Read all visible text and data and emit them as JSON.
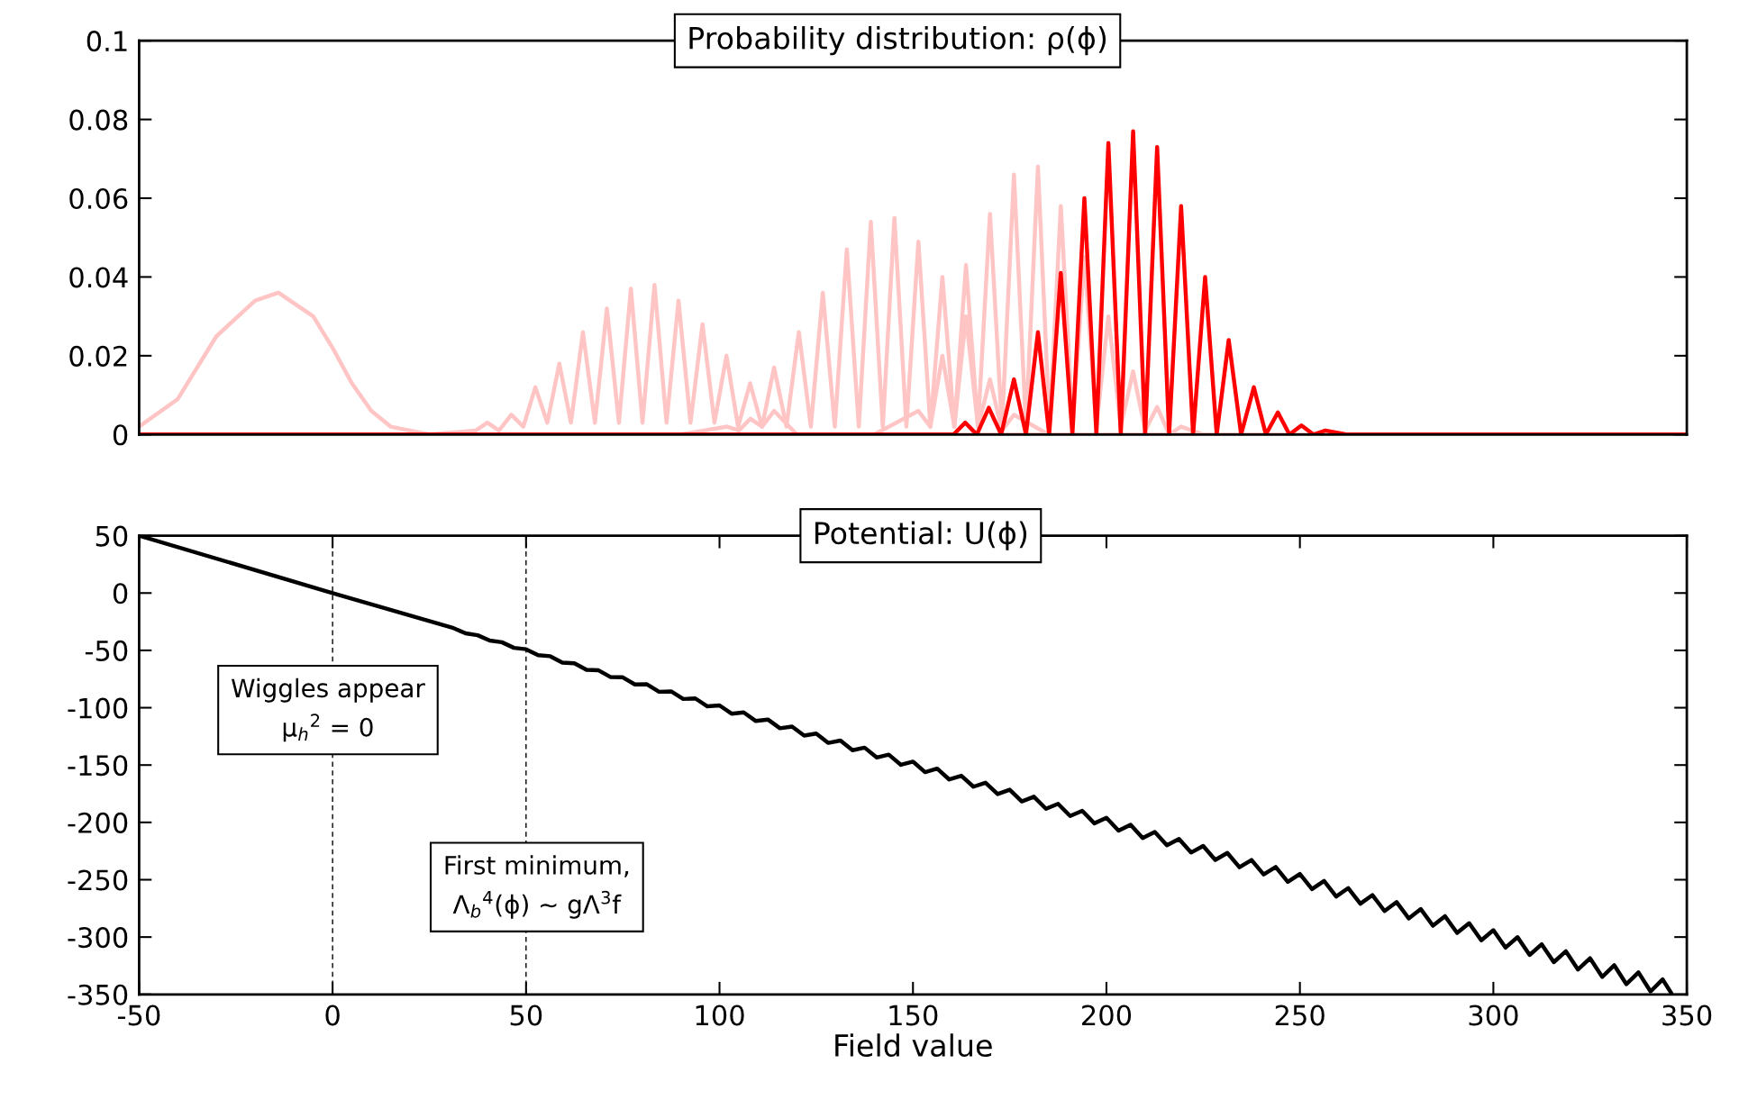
{
  "chart_data": [
    {
      "type": "line",
      "title": "Probability distribution: ρ(ϕ)",
      "xlim": [
        -50,
        350
      ],
      "ylim": [
        0,
        0.1
      ],
      "yticks": [
        0,
        0.02,
        0.04,
        0.06,
        0.08,
        0.1
      ],
      "tick_labels": "y",
      "grid": false,
      "legend": false,
      "marker": "none",
      "line_style": "solid",
      "series": [
        {
          "color": "#ffc4c4",
          "x": [
            -50,
            -40,
            -30,
            -20,
            -14,
            -5,
            0,
            5,
            10,
            15,
            25,
            350
          ],
          "values": [
            0.002,
            0.009,
            0.025,
            0.034,
            0.036,
            0.03,
            0.022,
            0.013,
            0.006,
            0.002,
            0,
            0
          ]
        },
        {
          "color": "#ffc4c4",
          "x": [
            25,
            37,
            40,
            43,
            46.2,
            49.3,
            52.4,
            55.5,
            58.6,
            61.6,
            64.7,
            67.8,
            70.9,
            74,
            77.1,
            80.1,
            83.2,
            86.3,
            89.4,
            92.5,
            95.6,
            98.7,
            101.8,
            104.8,
            107.9,
            111,
            114.1,
            120,
            350
          ],
          "values": [
            0,
            0.001,
            0.003,
            0.001,
            0.005,
            0.002,
            0.012,
            0.003,
            0.018,
            0.003,
            0.026,
            0.003,
            0.032,
            0.003,
            0.037,
            0.003,
            0.038,
            0.003,
            0.034,
            0.003,
            0.028,
            0.003,
            0.02,
            0.002,
            0.013,
            0.002,
            0.006,
            0,
            0
          ]
        },
        {
          "color": "#ffc4c4",
          "x": [
            -50,
            90,
            102,
            105,
            108,
            111,
            114.1,
            117.3,
            120.5,
            123.6,
            126.7,
            129.8,
            132.9,
            136,
            139.1,
            142.2,
            145.2,
            148.3,
            151.4,
            154.5,
            157.6,
            160.7,
            163.7,
            166.8,
            169.9,
            173,
            176.1,
            185,
            350
          ],
          "values": [
            0,
            0,
            0.002,
            0.001,
            0.004,
            0.002,
            0.017,
            0.002,
            0.026,
            0.002,
            0.036,
            0.002,
            0.047,
            0.002,
            0.054,
            0.002,
            0.055,
            0.002,
            0.049,
            0.002,
            0.04,
            0.002,
            0.03,
            0.002,
            0.014,
            0.001,
            0.005,
            0,
            0
          ]
        },
        {
          "color": "#ffc4c4",
          "x": [
            -50,
            140,
            151.4,
            154.5,
            157.6,
            160.7,
            163.7,
            166.8,
            169.9,
            173,
            176.1,
            179.2,
            182.3,
            185.3,
            188.2,
            191.3,
            194.3,
            197.4,
            200.5,
            203.7,
            206.9,
            210,
            213.1,
            216.2,
            219.3,
            225,
            350
          ],
          "values": [
            0,
            0,
            0.006,
            0.002,
            0.02,
            0.002,
            0.043,
            0.002,
            0.056,
            0.002,
            0.066,
            0.002,
            0.068,
            0.002,
            0.058,
            0.002,
            0.045,
            0.002,
            0.03,
            0.002,
            0.016,
            0.001,
            0.007,
            0,
            0.002,
            0,
            0
          ]
        },
        {
          "color": "#ff0000",
          "x": [
            -50,
            155,
            160.5,
            163.5,
            166.5,
            169.6,
            172.8,
            176.1,
            179.2,
            182.3,
            185.2,
            188.2,
            191.2,
            194.3,
            197.4,
            200.5,
            203.7,
            206.9,
            210,
            213.1,
            216.2,
            219.3,
            222.4,
            225.5,
            228.5,
            231.6,
            234.8,
            238.1,
            241.2,
            244.3,
            247.3,
            250.4,
            253.5,
            256.6,
            262,
            350
          ],
          "values": [
            0,
            0,
            0,
            0.003,
            0,
            0.0068,
            0,
            0.014,
            0,
            0.026,
            0,
            0.041,
            0,
            0.06,
            0,
            0.074,
            0,
            0.077,
            0,
            0.073,
            0,
            0.058,
            0,
            0.04,
            0,
            0.024,
            0,
            0.012,
            0,
            0.0056,
            0,
            0.0023,
            0,
            0.001,
            0,
            0
          ]
        }
      ]
    },
    {
      "type": "line",
      "title": "Potential: U(ϕ)",
      "xlabel": "Field value",
      "xlim": [
        -50,
        350
      ],
      "ylim": [
        -350,
        50
      ],
      "xticks": [
        -50,
        0,
        50,
        100,
        150,
        200,
        250,
        300,
        350
      ],
      "yticks": [
        -350,
        -300,
        -250,
        -200,
        -150,
        -100,
        -50,
        0,
        50
      ],
      "grid": false,
      "legend": false,
      "marker": "none",
      "line_style": "solid",
      "ref_lines": [
        {
          "axis": "x",
          "value": 0,
          "color": "#000000",
          "line_style": "dashed"
        },
        {
          "axis": "x",
          "value": 50,
          "color": "#000000",
          "line_style": "dashed"
        }
      ],
      "annotations": [
        "Wiggles appear\nμ$_{h}$$^{2}$ = 0",
        "First minimum,\nΛ$_{b}$$^{4}$(ϕ) ~ gΛ$^{3}$f"
      ],
      "series": [
        {
          "color": "#000000",
          "x": [
            -50,
            0,
            31.25,
            34.375,
            37.5,
            40.625,
            43.75,
            46.875,
            50,
            53.125,
            56.25,
            59.375,
            62.5,
            65.625,
            68.75,
            71.875,
            75,
            78.125,
            81.25,
            84.375,
            87.5,
            90.625,
            93.75,
            96.875,
            100,
            103.125,
            106.25,
            109.375,
            112.5,
            115.625,
            118.75,
            121.875,
            125,
            128.125,
            131.25,
            134.375,
            137.5,
            140.625,
            143.75,
            146.875,
            150,
            153.125,
            156.25,
            159.375,
            162.5,
            165.625,
            168.75,
            171.875,
            175,
            178.125,
            181.25,
            184.375,
            187.5,
            190.625,
            193.75,
            196.875,
            200,
            203.125,
            206.25,
            209.375,
            212.5,
            215.625,
            218.75,
            221.875,
            225,
            228.125,
            231.25,
            234.375,
            237.5,
            240.625,
            243.75,
            246.875,
            250,
            253.125,
            256.25,
            259.375,
            262.5,
            265.625,
            268.75,
            271.875,
            275,
            278.125,
            281.25,
            284.375,
            287.5,
            290.625,
            293.75,
            296.875,
            300,
            303.125,
            306.25,
            309.375,
            312.5,
            315.625,
            318.75,
            321.875,
            325,
            328.125,
            331.25,
            334.375,
            337.5,
            340.625,
            343.75,
            346
          ],
          "values": [
            50,
            0,
            -30.6,
            -35.1,
            -36.8,
            -41.4,
            -42.9,
            -47.8,
            -49.0,
            -54.2,
            -55.1,
            -60.6,
            -61.3,
            -66.9,
            -67.4,
            -73.3,
            -73.5,
            -79.7,
            -79.6,
            -86.1,
            -85.8,
            -92.4,
            -91.9,
            -98.8,
            -98.0,
            -105.2,
            -104.1,
            -111.6,
            -110.3,
            -117.9,
            -116.4,
            -124.3,
            -122.5,
            -130.7,
            -128.6,
            -137.1,
            -134.8,
            -143.4,
            -140.9,
            -149.8,
            -147.0,
            -156.2,
            -153.1,
            -162.6,
            -159.3,
            -168.9,
            -165.4,
            -175.3,
            -171.5,
            -181.7,
            -177.6,
            -188.1,
            -183.8,
            -194.4,
            -189.9,
            -200.8,
            -196.0,
            -207.2,
            -202.1,
            -213.6,
            -208.3,
            -219.9,
            -214.4,
            -226.3,
            -220.5,
            -232.7,
            -226.6,
            -239.1,
            -232.8,
            -245.4,
            -238.9,
            -251.8,
            -245.0,
            -258.2,
            -251.1,
            -264.6,
            -257.3,
            -270.9,
            -263.4,
            -277.3,
            -269.5,
            -283.7,
            -275.6,
            -290.1,
            -281.8,
            -296.4,
            -287.9,
            -302.8,
            -294.0,
            -309.2,
            -300.1,
            -315.6,
            -306.3,
            -321.9,
            -312.4,
            -328.3,
            -318.5,
            -334.7,
            -324.6,
            -341.1,
            -330.8,
            -347.4,
            -336.9,
            -349
          ]
        }
      ]
    }
  ]
}
